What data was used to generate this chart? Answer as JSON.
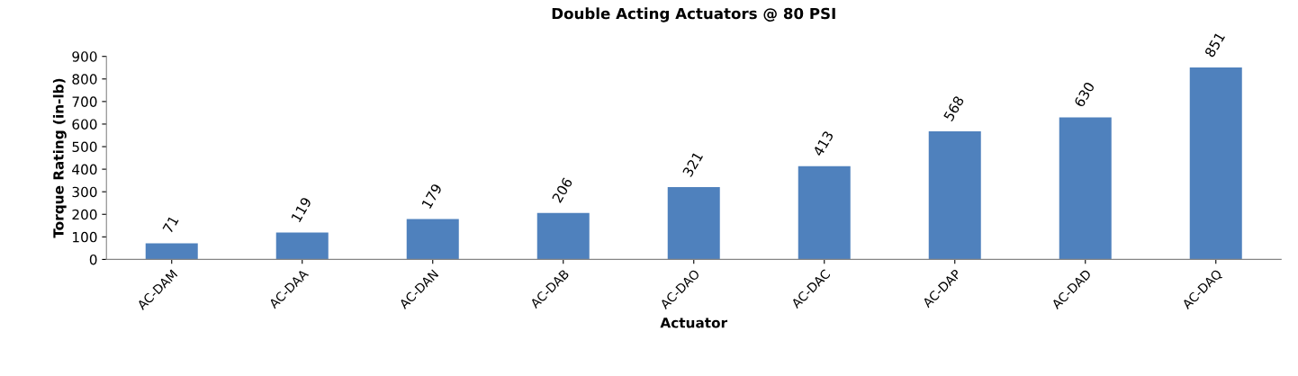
{
  "chart_data": {
    "type": "bar",
    "title": "Double Acting Actuators @ 80 PSI",
    "xlabel": "Actuator",
    "ylabel": "Torque Rating (in-lb)",
    "categories": [
      "AC-DAM",
      "AC-DAA",
      "AC-DAN",
      "AC-DAB",
      "AC-DAO",
      "AC-DAC",
      "AC-DAP",
      "AC-DAD",
      "AC-DAQ"
    ],
    "values": [
      71,
      119,
      179,
      206,
      321,
      413,
      568,
      630,
      851
    ],
    "color": "#4f81bd",
    "ylim": [
      0,
      900
    ],
    "yticks": [
      0,
      100,
      200,
      300,
      400,
      500,
      600,
      700,
      800,
      900
    ],
    "grid": false,
    "data_labels": true,
    "legend": false
  }
}
